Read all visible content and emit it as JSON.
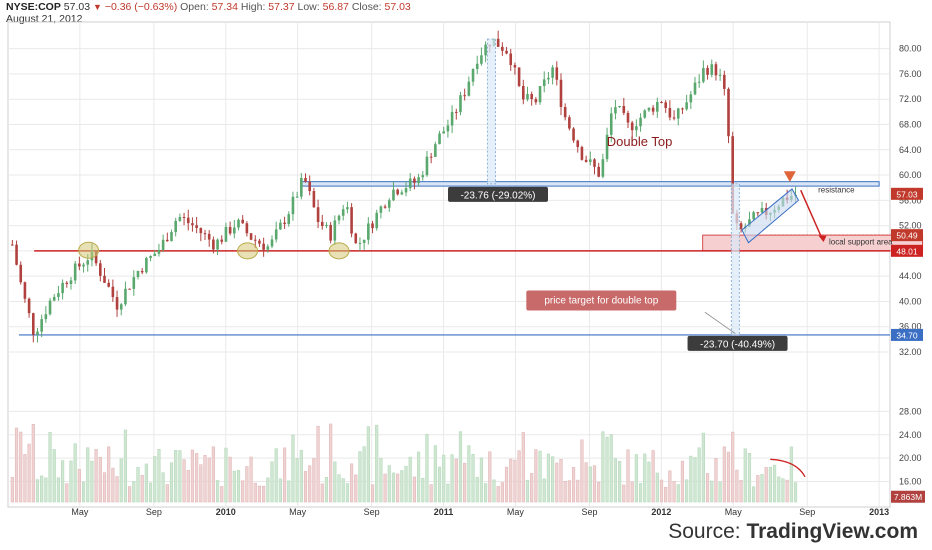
{
  "header": {
    "symbol": "NYSE:COP",
    "last": "57.03",
    "change": "−0.36 (−0.63%)",
    "open_label": "Open:",
    "open": "57.34",
    "high_label": "High:",
    "high": "57.37",
    "low_label": "Low:",
    "low": "56.87",
    "close_label": "Close:",
    "close": "57.03",
    "date": "August 21, 2012"
  },
  "source": {
    "prefix": "Source: ",
    "brand": "TradingView.com"
  },
  "colors": {
    "up": "#5aa86e",
    "down": "#b0413e",
    "red_line": "#cc2222",
    "blue_line": "#3a6fc4",
    "resistance_fill": "#dbe6f5",
    "support_fill": "#f6d0d0",
    "marker": "#d4c878",
    "vol_up": "#cfe7d2",
    "vol_down": "#efd2d2",
    "grid": "#e9e9e9",
    "label_dark": "#3c3c3c",
    "label_red_box": "#c96a6a",
    "arrow": "#e0643a"
  },
  "chart_data": {
    "type": "candlestick",
    "symbol": "NYSE:COP",
    "interval": "weekly",
    "y_axis": {
      "range": [
        32,
        82
      ],
      "ticks": [
        "80.00",
        "76.00",
        "72.00",
        "68.00",
        "64.00",
        "60.00",
        "56.00",
        "52.00",
        "48.00",
        "44.00",
        "40.00",
        "36.00",
        "32.00"
      ]
    },
    "volume_axis": {
      "range": [
        12.5,
        32
      ],
      "ticks": [
        "28.00",
        "24.00",
        "20.00",
        "16.00"
      ],
      "last_label": "7.863M"
    },
    "x_axis": {
      "range": [
        2009.0,
        2013.05
      ],
      "ticks": [
        {
          "t": 2009.33,
          "label": "May"
        },
        {
          "t": 2009.67,
          "label": "Sep"
        },
        {
          "t": 2010.0,
          "label": "2010"
        },
        {
          "t": 2010.33,
          "label": "May"
        },
        {
          "t": 2010.67,
          "label": "Sep"
        },
        {
          "t": 2011.0,
          "label": "2011"
        },
        {
          "t": 2011.33,
          "label": "May"
        },
        {
          "t": 2011.67,
          "label": "Sep"
        },
        {
          "t": 2012.0,
          "label": "2012"
        },
        {
          "t": 2012.33,
          "label": "May"
        },
        {
          "t": 2012.67,
          "label": "Sep"
        },
        {
          "t": 2013.0,
          "label": "2013"
        }
      ]
    },
    "price_path": [
      [
        2009.02,
        49
      ],
      [
        2009.07,
        41
      ],
      [
        2009.12,
        35
      ],
      [
        2009.2,
        40.5
      ],
      [
        2009.28,
        44
      ],
      [
        2009.38,
        47.5
      ],
      [
        2009.45,
        43
      ],
      [
        2009.5,
        39.5
      ],
      [
        2009.6,
        45
      ],
      [
        2009.7,
        48.5
      ],
      [
        2009.78,
        53.5
      ],
      [
        2009.85,
        52
      ],
      [
        2009.95,
        49
      ],
      [
        2010.05,
        52.5
      ],
      [
        2010.12,
        50
      ],
      [
        2010.2,
        48.5
      ],
      [
        2010.3,
        55
      ],
      [
        2010.36,
        59.5
      ],
      [
        2010.42,
        53
      ],
      [
        2010.48,
        50.5
      ],
      [
        2010.55,
        56
      ],
      [
        2010.6,
        48.5
      ],
      [
        2010.68,
        53
      ],
      [
        2010.76,
        57.5
      ],
      [
        2010.88,
        59
      ],
      [
        2010.96,
        65
      ],
      [
        2011.04,
        69
      ],
      [
        2011.1,
        73.5
      ],
      [
        2011.15,
        78.5
      ],
      [
        2011.22,
        81.5
      ],
      [
        2011.3,
        79.5
      ],
      [
        2011.36,
        72
      ],
      [
        2011.42,
        71.5
      ],
      [
        2011.5,
        77
      ],
      [
        2011.56,
        69
      ],
      [
        2011.64,
        63
      ],
      [
        2011.72,
        60
      ],
      [
        2011.78,
        71.5
      ],
      [
        2011.85,
        67.5
      ],
      [
        2012.0,
        72
      ],
      [
        2012.06,
        68.5
      ],
      [
        2012.14,
        73
      ],
      [
        2012.2,
        77
      ],
      [
        2012.26,
        76.5
      ],
      [
        2012.3,
        71.5
      ],
      [
        2012.33,
        52
      ],
      [
        2012.36,
        51
      ],
      [
        2012.42,
        53
      ],
      [
        2012.5,
        54.5
      ],
      [
        2012.57,
        56.5
      ],
      [
        2012.63,
        57.03
      ]
    ],
    "volume_note": "weekly volume bars, millions",
    "horizontal_lines": [
      {
        "name": "resistance",
        "y": 58.6,
        "color": "blue",
        "label": "resistance"
      },
      {
        "name": "support",
        "y": 48.01,
        "color": "red",
        "axis_label": "48.01"
      },
      {
        "name": "price-target",
        "y": 34.7,
        "color": "blue",
        "axis_label": "34.70"
      }
    ],
    "axis_labels": [
      {
        "value": 57.03,
        "text": "57.03"
      },
      {
        "value": 50.49,
        "text": "50.49"
      },
      {
        "value": 48.01,
        "text": "48.01"
      },
      {
        "value": 34.7,
        "text": "34.70"
      }
    ],
    "annotations": {
      "double_top": "Double Top",
      "measure_top": "-23.76 (-29.02%)",
      "measure_target": "-23.70 (-40.49%)",
      "price_target": "price target for double top",
      "local_support": "local support area",
      "resistance": "resistance"
    }
  }
}
